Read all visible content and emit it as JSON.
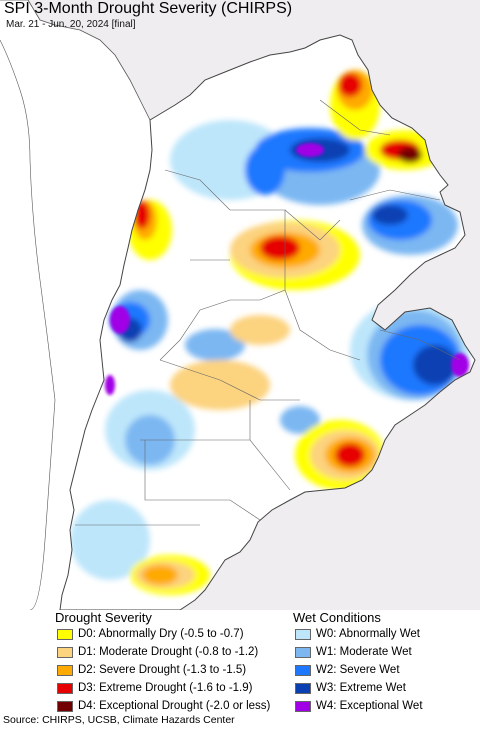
{
  "header": {
    "title": "SPI 3-Month Drought Severity (CHIRPS)",
    "subtitle": "Mar. 21 - Jun. 20, 2024 [final]"
  },
  "legend": {
    "drought_title": "Drought Severity",
    "wet_title": "Wet Conditions",
    "drought": [
      {
        "label": "D0: Abnormally Dry (-0.5 to -0.7)",
        "color": "#ffff00"
      },
      {
        "label": "D1: Moderate Drought (-0.8 to -1.2)",
        "color": "#fcd37f"
      },
      {
        "label": "D2: Severe Drought (-1.3 to -1.5)",
        "color": "#ffaa00"
      },
      {
        "label": "D3: Extreme Drought (-1.6 to -1.9)",
        "color": "#e60000"
      },
      {
        "label": "D4: Exceptional Drought (-2.0 or less)",
        "color": "#730000"
      }
    ],
    "wet": [
      {
        "label": "W0: Abnormally Wet",
        "color": "#bde6fb"
      },
      {
        "label": "W1: Moderate Wet",
        "color": "#7cb7f2"
      },
      {
        "label": "W2: Severe Wet",
        "color": "#1e78ff"
      },
      {
        "label": "W3: Extreme Wet",
        "color": "#0a3fb2"
      },
      {
        "label": "W4: Exceptional Wet",
        "color": "#a100e6"
      }
    ]
  },
  "footer": {
    "source": "Source: CHIRPS, UCSB, Climate Hazards Center"
  },
  "colors": {
    "ocean": "#ffffff",
    "land_outside": "#efedf0",
    "border": "#555555"
  }
}
